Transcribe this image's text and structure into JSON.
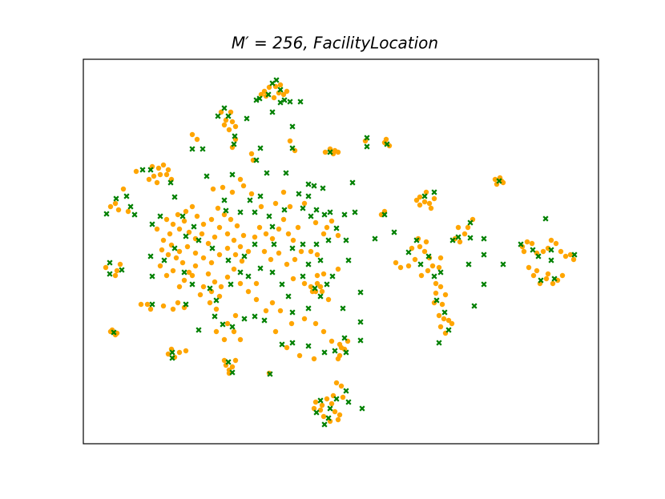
{
  "chart_data": {
    "type": "scatter",
    "title": "M′ = 256, FacilityLocation",
    "xlim": [
      0,
      643
    ],
    "ylim": [
      0,
      480
    ],
    "series": [
      {
        "color": "#ffa500",
        "marker": "o",
        "x": [
          226,
          232,
          240,
          244,
          250,
          238,
          228,
          254,
          222,
          246,
          172,
          178,
          184,
          186,
          176,
          190,
          182,
          190,
          186,
          302,
          308,
          314,
          312,
          318,
          376,
          382,
          378,
          352,
          264,
          258,
          212,
          210,
          94,
          100,
          106,
          88,
          96,
          104,
          82,
          92,
          110,
          86,
          66,
          40,
          50,
          44,
          56,
          34,
          514,
          520,
          524,
          516,
          522,
          420,
          426,
          432,
          438,
          420,
          428,
          434,
          416,
          376,
          372,
          136,
          142,
          104,
          112,
          120,
          126,
          132,
          140,
          148,
          156,
          164,
          170,
          180,
          188,
          196,
          200,
          192,
          184,
          176,
          168,
          160,
          150,
          142,
          136,
          128,
          118,
          108,
          100,
          110,
          120,
          130,
          140,
          150,
          160,
          170,
          180,
          190,
          198,
          206,
          214,
          220,
          228,
          236,
          244,
          250,
          256,
          262,
          268,
          140,
          132,
          124,
          116,
          106,
          98,
          156,
          164,
          172,
          180,
          188,
          150,
          160,
          170,
          158,
          166,
          146,
          196,
          206,
          216,
          226,
          234,
          244,
          254,
          264,
          272,
          112,
          126,
          136,
          120,
          92,
          96,
          104,
          118,
          126,
          112,
          100,
          174,
          162,
          186,
          200,
          210,
          196,
          222,
          240,
          250,
          258,
          276,
          290,
          300,
          304,
          310,
          318,
          292,
          284,
          300,
          318,
          276,
          262,
          292,
          306,
          236,
          246,
          260,
          276,
          290,
          300,
          310,
          322,
          318,
          288,
          270,
          254,
          240,
          228,
          216,
          196,
          188,
          176,
          166,
          180,
          190,
          284,
          290,
          296,
          292,
          286,
          298,
          106,
          114,
          110,
          120,
          128,
          178,
          186,
          182,
          176,
          190,
          182,
          232,
          34,
          40,
          36,
          42,
          28,
          46,
          42,
          40,
          72,
          80,
          84,
          320,
          330,
          326,
          320,
          290,
          298,
          304,
          310,
          314,
          320,
          318,
          308,
          300,
          296,
          312,
          324,
          288,
          322,
          316,
          390,
          396,
          406,
          414,
          410,
          420,
          426,
          418,
          428,
          432,
          436,
          444,
          446,
          430,
          422,
          440,
          446,
          440,
          452,
          448,
          438,
          444,
          450,
          456,
          446,
          452,
          460,
          464,
          470,
          476,
          468,
          486,
          480,
          548,
          554,
          560,
          566,
          574,
          580,
          596,
          608,
          612,
          602,
          562,
          570,
          578,
          586,
          592,
          598,
          580,
          566,
          556,
          550,
          590,
          584
        ],
        "y": [
          440,
          445,
          446,
          438,
          436,
          432,
          434,
          440,
          436,
          448,
          414,
          404,
          414,
          402,
          398,
          396,
          392,
          380,
          370,
          364,
          368,
          366,
          362,
          364,
          376,
          372,
          380,
          378,
          366,
          378,
          354,
          362,
          344,
          348,
          342,
          334,
          336,
          336,
          330,
          326,
          330,
          346,
          340,
          300,
          318,
          292,
          290,
          296,
          330,
          332,
          326,
          324,
          328,
          308,
          302,
          300,
          306,
          298,
          314,
          294,
          304,
          290,
          286,
          386,
          380,
          280,
          274,
          268,
          278,
          264,
          256,
          262,
          250,
          258,
          270,
          262,
          254,
          246,
          260,
          272,
          280,
          286,
          294,
          280,
          274,
          284,
          296,
          290,
          286,
          262,
          254,
          248,
          240,
          246,
          238,
          232,
          226,
          236,
          244,
          236,
          228,
          240,
          258,
          270,
          262,
          256,
          268,
          280,
          262,
          254,
          270,
          222,
          214,
          226,
          232,
          236,
          242,
          212,
          202,
          196,
          208,
          218,
          196,
          190,
          184,
          176,
          168,
          186,
          200,
          190,
          200,
          240,
          230,
          238,
          224,
          230,
          240,
          216,
          204,
          210,
          196,
          268,
          222,
          210,
          176,
          170,
          168,
          172,
          320,
          318,
          314,
          322,
          312,
          330,
          296,
          300,
          314,
          296,
          300,
          276,
          262,
          270,
          278,
          260,
          236,
          240,
          212,
          218,
          200,
          206,
          210,
          180,
          176,
          166,
          150,
          156,
          150,
          140,
          128,
          120,
          106,
          106,
          110,
          120,
          140,
          166,
          180,
          130,
          140,
          130,
          140,
          150,
          160,
          196,
          190,
          196,
          200,
          190,
          190,
          112,
          108,
          118,
          114,
          116,
          98,
          96,
          92,
          104,
          104,
          88,
          88,
          140,
          136,
          142,
          138,
          220,
          224,
          216,
          210,
          174,
          174,
          168,
          124,
          128,
          118,
          110,
          52,
          48,
          56,
          50,
          40,
          36,
          30,
          28,
          34,
          42,
          60,
          58,
          44,
          72,
          76,
          226,
          220,
          222,
          230,
          244,
          246,
          240,
          256,
          252,
          232,
          222,
          220,
          232,
          216,
          210,
          200,
          196,
          188,
          186,
          174,
          176,
          160,
          156,
          154,
          146,
          138,
          150,
          256,
          252,
          262,
          270,
          280,
          270,
          246,
          252,
          250,
          238,
          240,
          244,
          240,
          236,
          230,
          234,
          210,
          200,
          206,
          200,
          204,
          210,
          212,
          216,
          220,
          240,
          250,
          254
        ]
      },
      {
        "color": "#008000",
        "marker": "x",
        "x": [
          220,
          231,
          236,
          241,
          246,
          251,
          258,
          271,
          216,
          236,
          246,
          176,
          181,
          168,
          204,
          189,
          188,
          261,
          261,
          136,
          149,
          221,
          216,
          74,
          84,
          154,
          109,
          114,
          41,
          54,
          59,
          29,
          64,
          86,
          96,
          124,
          138,
          186,
          229,
          253,
          281,
          288,
          299,
          336,
          354,
          354,
          379,
          308,
          176,
          178,
          196,
          208,
          221,
          214,
          232,
          236,
          251,
          269,
          281,
          274,
          284,
          291,
          301,
          308,
          326,
          339,
          316,
          306,
          291,
          274,
          261,
          238,
          214,
          201,
          181,
          161,
          144,
          128,
          114,
          101,
          84,
          86,
          126,
          136,
          158,
          166,
          184,
          196,
          206,
          221,
          236,
          248,
          256,
          274,
          281,
          296,
          311,
          328,
          331,
          289,
          296,
          304,
          346,
          324,
          281,
          261,
          226,
          214,
          201,
          186,
          174,
          164,
          144,
          128,
          86,
          33,
          33,
          48,
          38,
          111,
          111,
          181,
          186,
          233,
          248,
          261,
          281,
          301,
          314,
          326,
          328,
          346,
          346,
          296,
          308,
          316,
          328,
          331,
          348,
          306,
          301,
          291,
          364,
          376,
          388,
          406,
          416,
          421,
          431,
          438,
          446,
          441,
          451,
          444,
          456,
          461,
          468,
          483,
          483,
          500,
          500,
          500,
          488,
          481,
          426,
          438,
          519,
          577,
          524,
          546,
          568,
          561,
          584,
          584,
          588,
          571,
          613
        ],
        "y": [
          431,
          436,
          450,
          454,
          442,
          429,
          427,
          427,
          429,
          414,
          426,
          419,
          409,
          409,
          406,
          384,
          374,
          396,
          369,
          368,
          368,
          369,
          354,
          342,
          342,
          334,
          326,
          308,
          306,
          309,
          296,
          287,
          286,
          274,
          284,
          284,
          271,
          336,
          338,
          338,
          324,
          322,
          319,
          326,
          382,
          371,
          374,
          364,
          304,
          291,
          289,
          304,
          309,
          289,
          284,
          271,
          292,
          312,
          309,
          294,
          284,
          292,
          286,
          289,
          286,
          289,
          269,
          254,
          249,
          249,
          244,
          249,
          249,
          234,
          229,
          244,
          254,
          259,
          244,
          229,
          234,
          209,
          214,
          199,
          194,
          179,
          199,
          214,
          209,
          219,
          214,
          199,
          184,
          209,
          224,
          229,
          209,
          254,
          229,
          194,
          184,
          199,
          189,
          169,
          169,
          164,
          154,
          159,
          156,
          146,
          149,
          159,
          142,
          174,
          174,
          226,
          212,
          217,
          139,
          107,
          114,
          102,
          89,
          87,
          124,
          126,
          122,
          114,
          116,
          132,
          114,
          152,
          129,
          54,
          44,
          56,
          66,
          52,
          44,
          32,
          24,
          39,
          256,
          286,
          264,
          239,
          254,
          224,
          234,
          209,
          214,
          179,
          164,
          126,
          142,
          254,
          258,
          276,
          257,
          256,
          236,
          199,
          172,
          224,
          309,
          314,
          328,
          281,
          224,
          249,
          234,
          242,
          242,
          229,
          206,
          204,
          236
        ]
      }
    ]
  }
}
